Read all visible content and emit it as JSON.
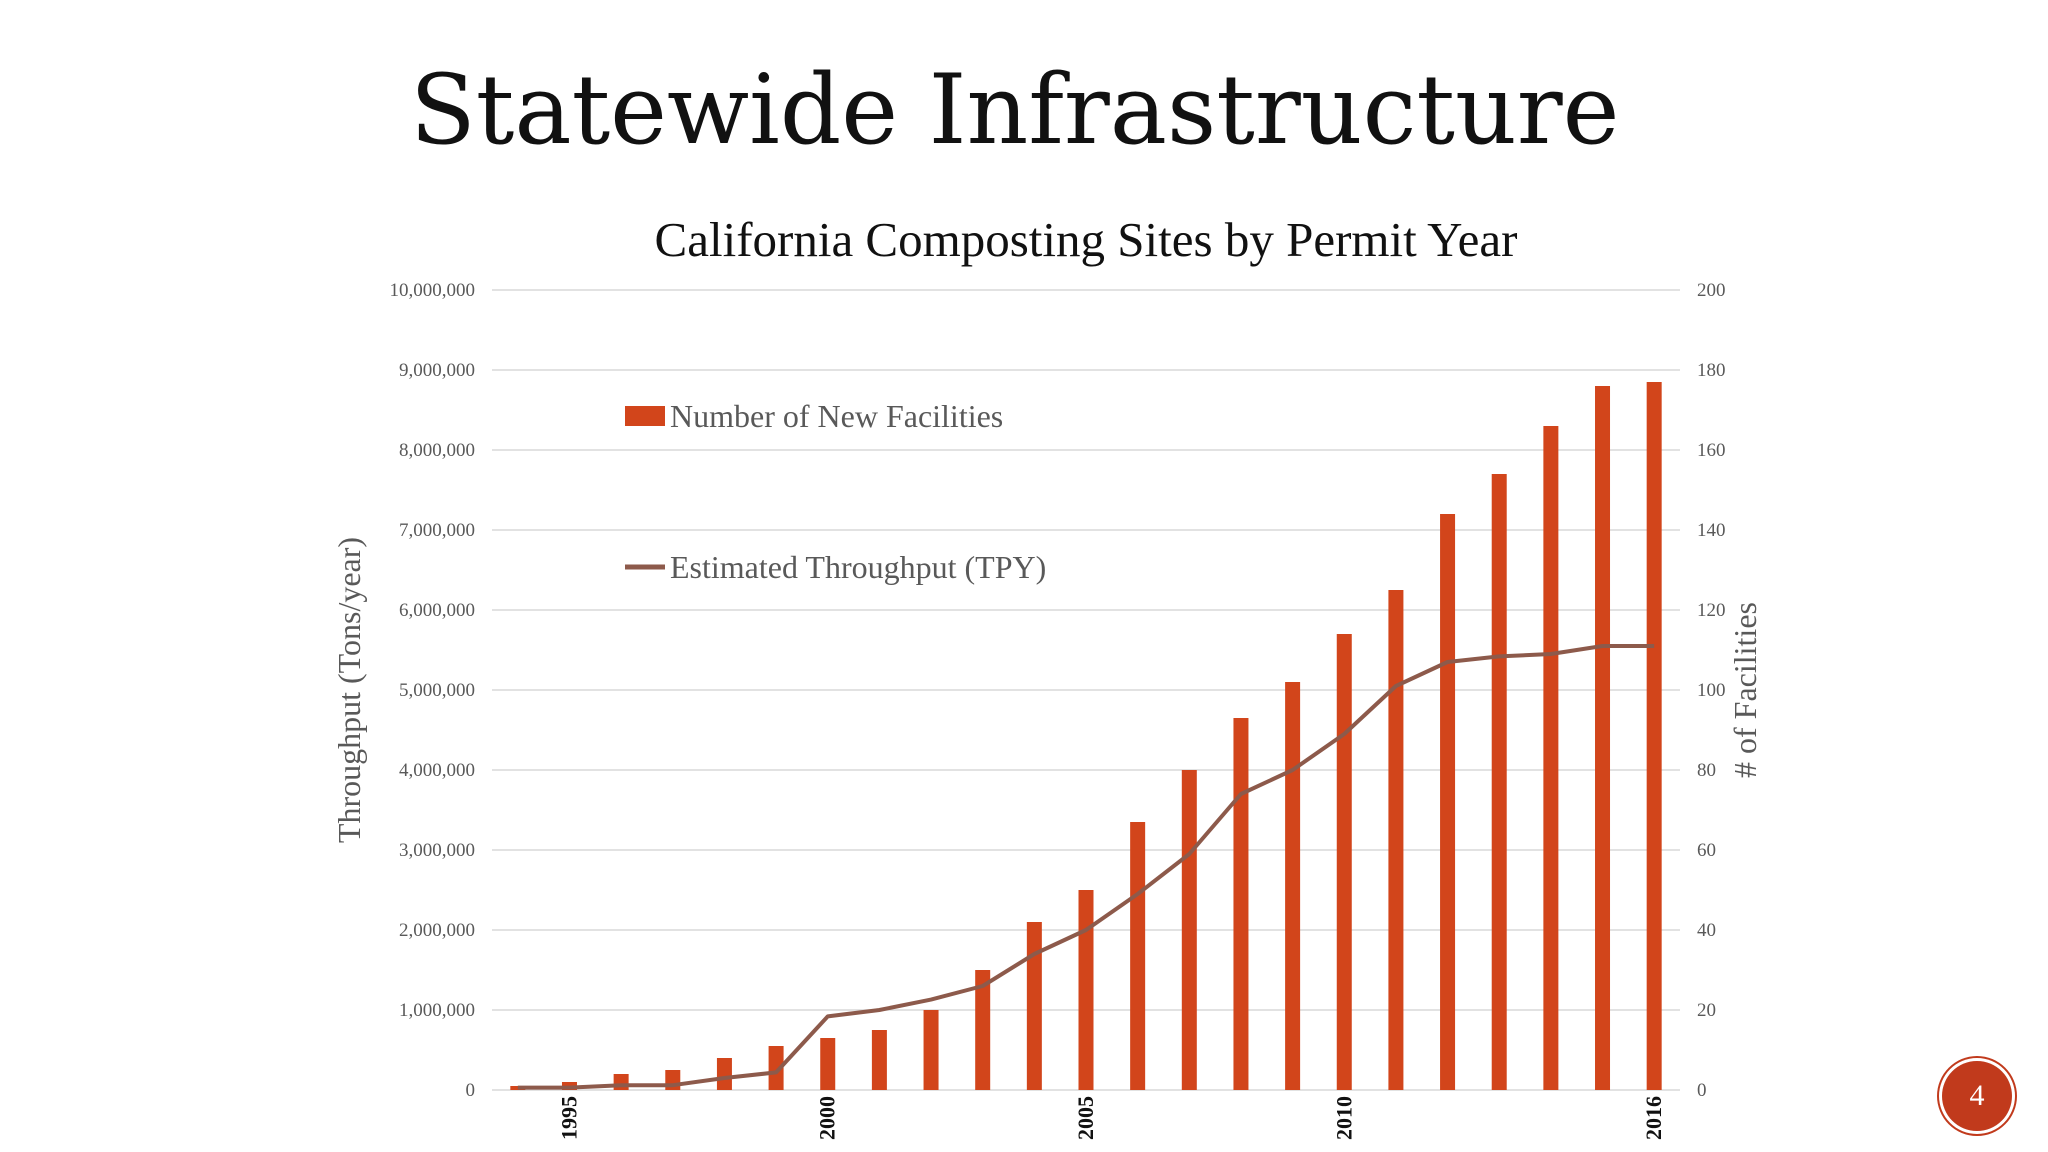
{
  "slide": {
    "title": "Statewide Infrastructure",
    "page_number": "4"
  },
  "colors": {
    "bars": "#d2451b",
    "line": "#8d5a4b",
    "gridline": "#d9d9d9",
    "axis_text": "#595959",
    "badge": "#c13a1c"
  },
  "chart_data": {
    "type": "bar",
    "title": "California Composting Sites by Permit Year",
    "ylabel": "Throughput (Tons/year)",
    "y2label": "# of Facilities",
    "ylim": [
      0,
      10000000
    ],
    "y2lim": [
      0,
      200
    ],
    "y_ticks": [
      "0",
      "1,000,000",
      "2,000,000",
      "3,000,000",
      "4,000,000",
      "5,000,000",
      "6,000,000",
      "7,000,000",
      "8,000,000",
      "9,000,000",
      "10,000,000"
    ],
    "y2_ticks": [
      "0",
      "20",
      "40",
      "60",
      "80",
      "100",
      "120",
      "140",
      "160",
      "180",
      "200"
    ],
    "x_tick_labels": [
      "1995",
      "2000",
      "2005",
      "2010",
      "2016"
    ],
    "legend_position": "top-left",
    "categories": [
      "1994",
      "1995",
      "1996",
      "1997",
      "1998",
      "1999",
      "2000",
      "2001",
      "2002",
      "2003",
      "2004",
      "2005",
      "2006",
      "2007",
      "2008",
      "2009",
      "2010",
      "2011",
      "2012",
      "2013",
      "2014",
      "2015",
      "2016"
    ],
    "series": [
      {
        "name": "Number of New Facilities",
        "type": "bar",
        "axis": "right",
        "values": [
          1,
          2,
          4,
          5,
          8,
          11,
          13,
          15,
          20,
          30,
          42,
          50,
          67,
          80,
          93,
          102,
          114,
          125,
          144,
          154,
          166,
          176,
          177
        ]
      },
      {
        "name": "Estimated Throughput (TPY)",
        "type": "line",
        "axis": "left",
        "values": [
          30000,
          30000,
          60000,
          60000,
          150000,
          220000,
          920000,
          1000000,
          1130000,
          1300000,
          1700000,
          2000000,
          2450000,
          2950000,
          3700000,
          4000000,
          4450000,
          5050000,
          5350000,
          5420000,
          5450000,
          5550000,
          5550000
        ]
      }
    ]
  }
}
